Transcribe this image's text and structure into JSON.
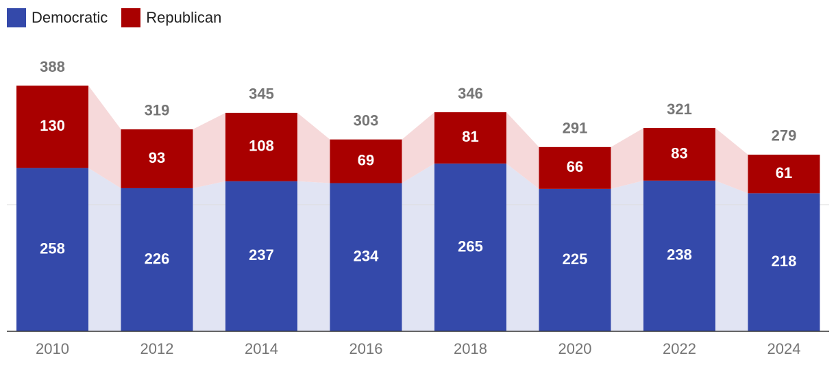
{
  "chart_data": {
    "type": "bar",
    "stacked": true,
    "categories": [
      "2010",
      "2012",
      "2014",
      "2016",
      "2018",
      "2020",
      "2022",
      "2024"
    ],
    "series": [
      {
        "name": "Democratic",
        "color": "#3449aa",
        "band_color": "#e1e4f3",
        "values": [
          258,
          226,
          237,
          234,
          265,
          225,
          238,
          218
        ]
      },
      {
        "name": "Republican",
        "color": "#a90000",
        "band_color": "#f6d9da",
        "values": [
          130,
          93,
          108,
          69,
          81,
          66,
          83,
          61
        ]
      }
    ],
    "totals": [
      "388",
      "319",
      "345",
      "303",
      "346",
      "291",
      "321",
      "279"
    ],
    "ylim": [
      0,
      400
    ],
    "grid": true,
    "legend_position": "top-left",
    "title": "",
    "xlabel": "",
    "ylabel": ""
  }
}
